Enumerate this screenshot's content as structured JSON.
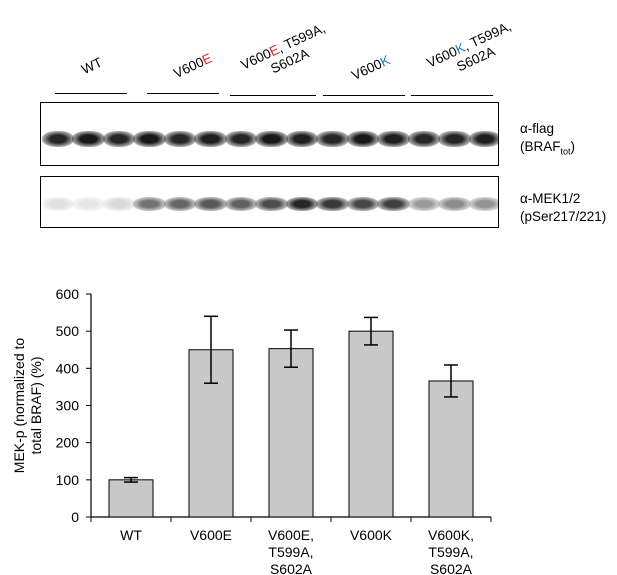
{
  "blot": {
    "lanes": [
      {
        "parts": [
          {
            "t": "WT",
            "c": ""
          }
        ]
      },
      {
        "parts": [
          {
            "t": "V600",
            "c": ""
          },
          {
            "t": "E",
            "c": "red"
          }
        ]
      },
      {
        "parts": [
          {
            "t": "V600",
            "c": ""
          },
          {
            "t": "E",
            "c": "red"
          },
          {
            "t": ", T599A,",
            "c": ""
          }
        ],
        "line2": "S602A"
      },
      {
        "parts": [
          {
            "t": "V600",
            "c": ""
          },
          {
            "t": "K",
            "c": "blue"
          }
        ]
      },
      {
        "parts": [
          {
            "t": "V600",
            "c": ""
          },
          {
            "t": "K",
            "c": "blue"
          },
          {
            "t": ", T599A,",
            "c": ""
          }
        ],
        "line2": "S602A"
      }
    ],
    "flag_label": "α-flag",
    "flag_sub_prefix": "(BRAF",
    "flag_sub_subscript": "tot",
    "flag_sub_suffix": ")",
    "mek_label": "α-MEK1/2",
    "mek_sub": "(pSer217/221)",
    "flag_intensity": [
      0.85,
      0.9,
      0.85,
      0.9,
      0.85,
      0.88,
      0.85,
      0.9,
      0.88,
      0.85,
      0.9,
      0.88,
      0.85,
      0.85,
      0.88
    ],
    "mek_intensity": [
      0.12,
      0.1,
      0.15,
      0.55,
      0.6,
      0.65,
      0.62,
      0.7,
      0.85,
      0.78,
      0.72,
      0.75,
      0.4,
      0.45,
      0.42
    ]
  },
  "chart_data": {
    "type": "bar",
    "categories": [
      "WT",
      "V600E",
      "V600E, T599A, S602A",
      "V600K",
      "V600K, T599A, S602A"
    ],
    "category_lines": [
      [
        "WT"
      ],
      [
        "V600E"
      ],
      [
        "V600E,",
        "T599A,",
        "S602A"
      ],
      [
        "V600K"
      ],
      [
        "V600K,",
        "T599A,",
        "S602A"
      ]
    ],
    "values": [
      100,
      450,
      453,
      500,
      366
    ],
    "errors": [
      6,
      90,
      50,
      37,
      43
    ],
    "ylabel_line1": "MEK-p (normalized to",
    "ylabel_line2": "total BRAF) (%)",
    "ylim": [
      0,
      600
    ],
    "yticks": [
      0,
      100,
      200,
      300,
      400,
      500,
      600
    ],
    "bar_color": "#c8c8c8",
    "grid": false
  }
}
